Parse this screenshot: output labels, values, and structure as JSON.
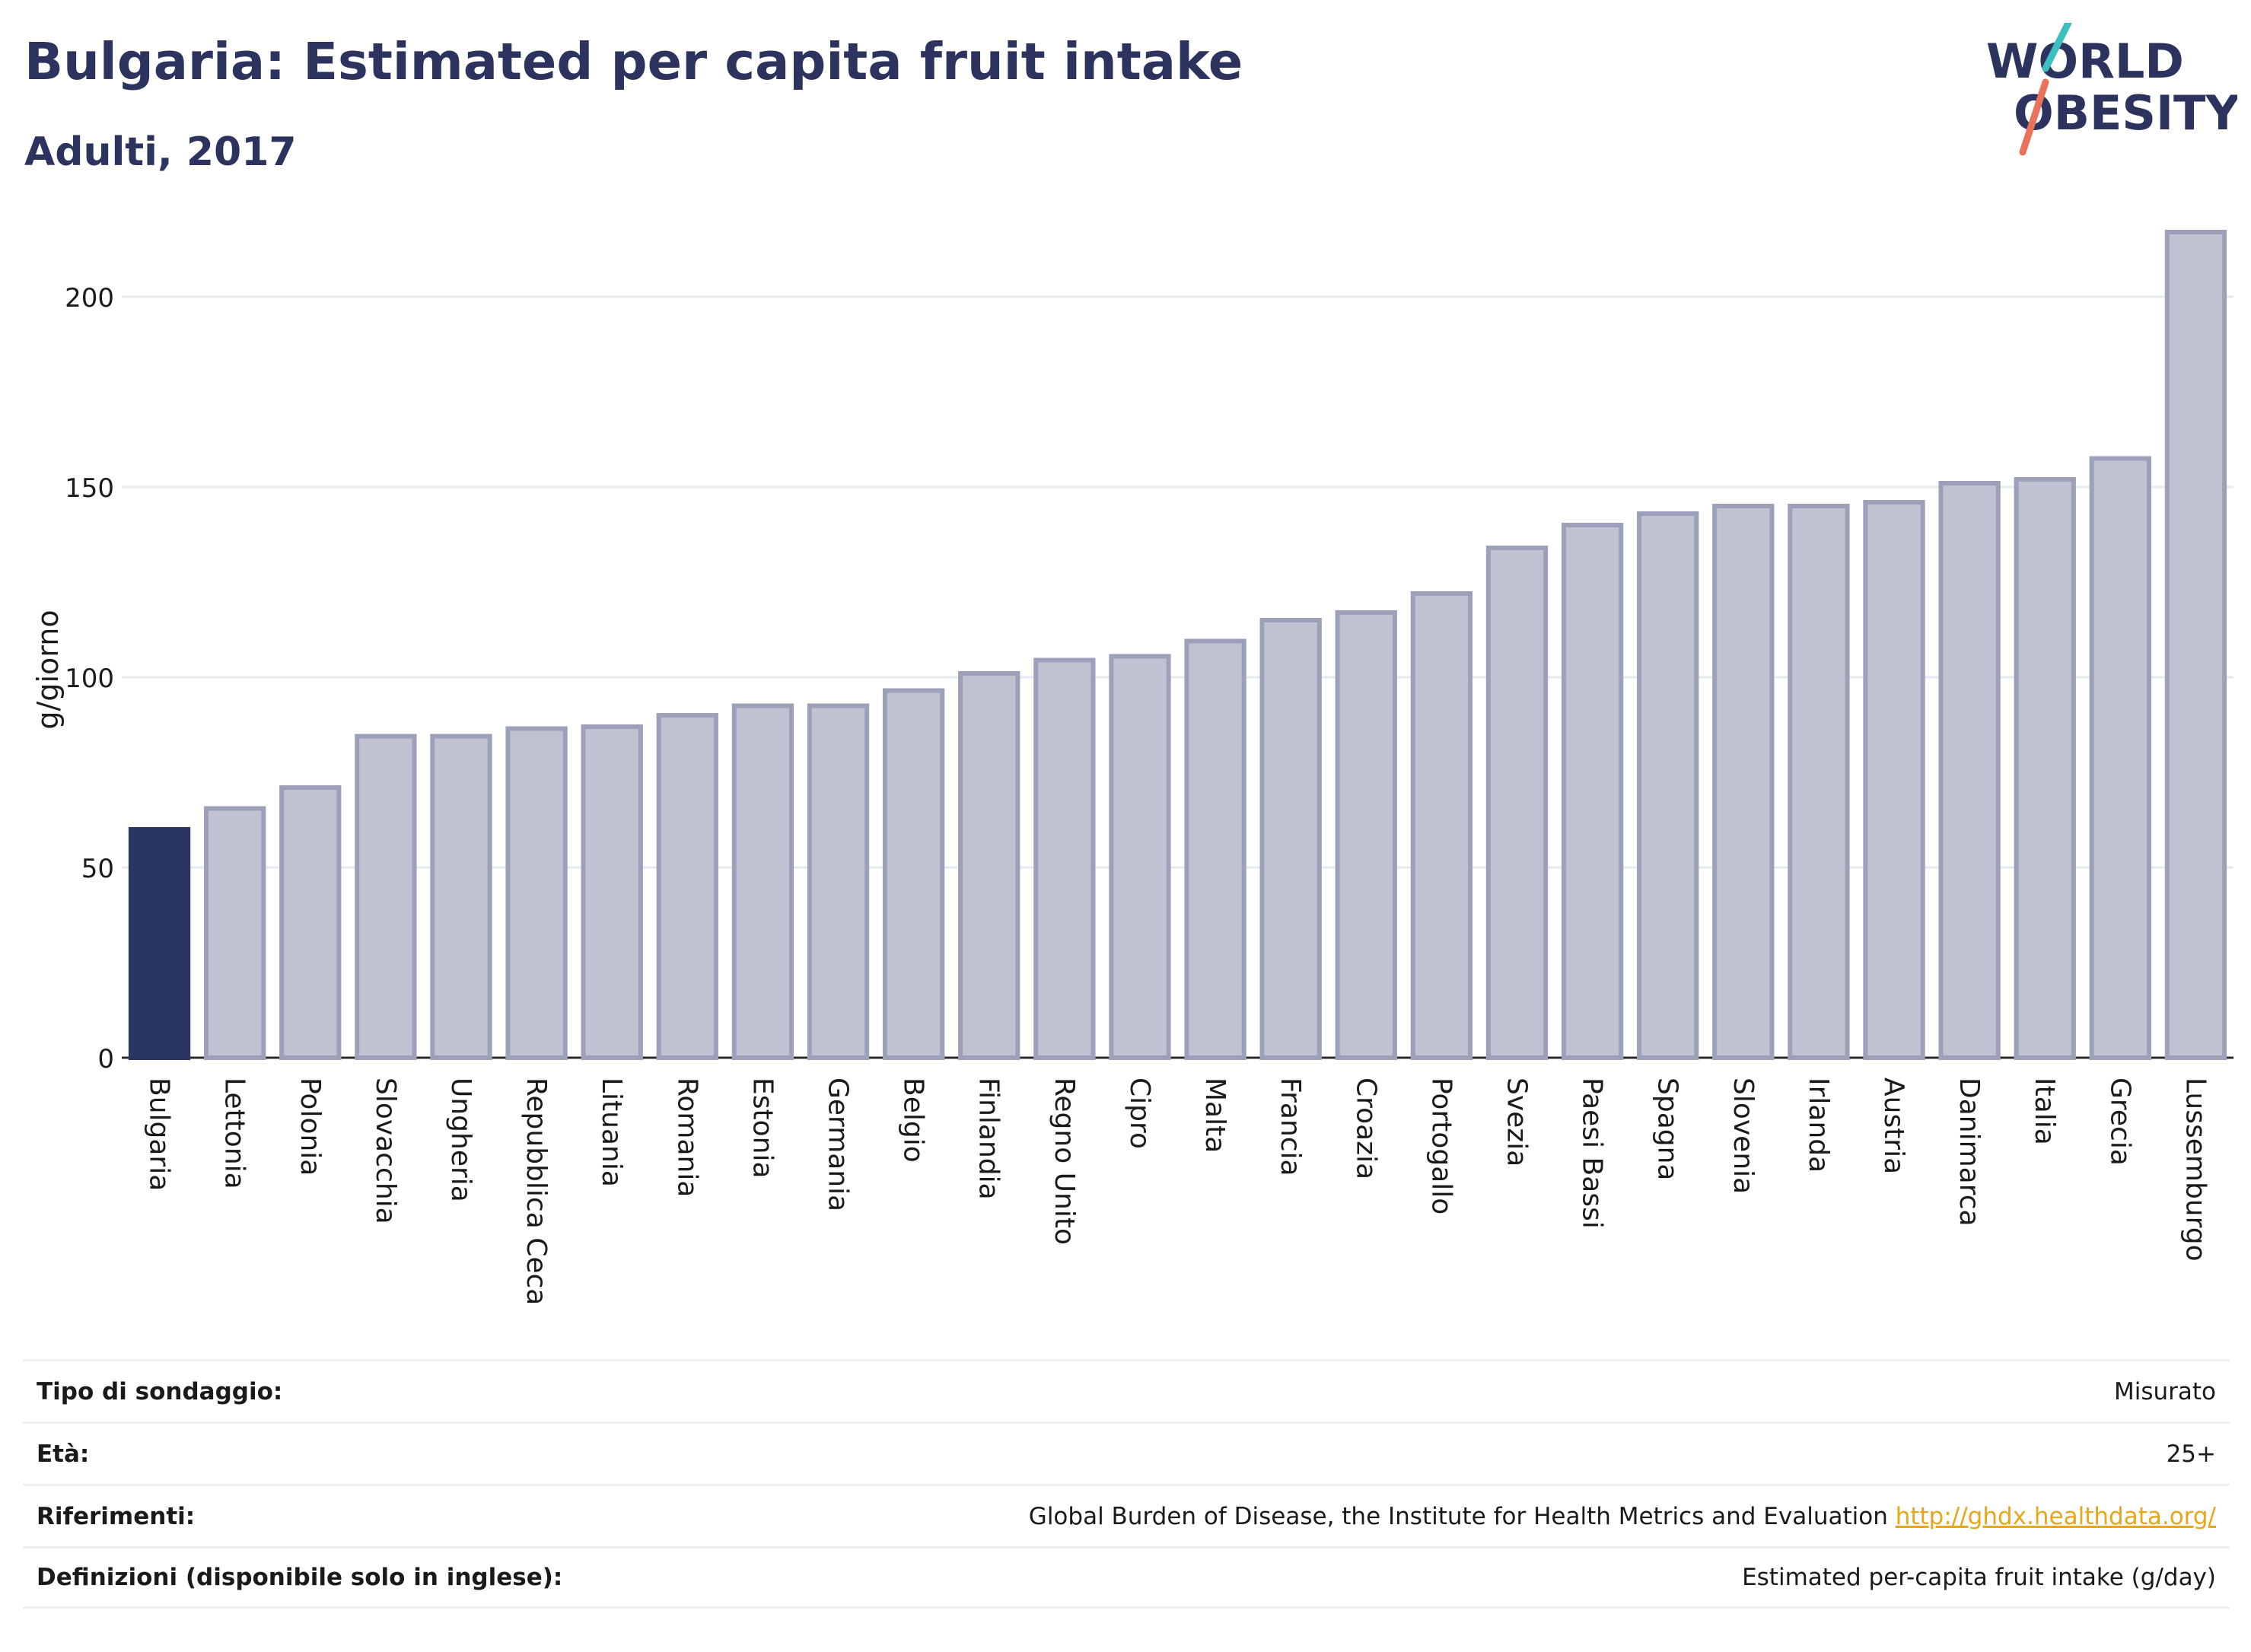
{
  "header": {
    "title": "Bulgaria: Estimated per capita fruit intake",
    "subtitle": "Adulti, 2017"
  },
  "logo": {
    "line1": "WORLD",
    "line2": "OBESITY",
    "slash_colors": [
      "#3bbfbf",
      "#e8735a"
    ]
  },
  "chart_data": {
    "type": "bar",
    "title": "Bulgaria: Estimated per capita fruit intake",
    "subtitle": "Adulti, 2017",
    "xlabel": "",
    "ylabel": "g/giorno",
    "ylim": [
      0,
      220
    ],
    "yticks": [
      0,
      50,
      100,
      150,
      200
    ],
    "grid": true,
    "highlight": "Bulgaria",
    "colors": {
      "highlight": "#2b3562",
      "bar": "#bfc2d0",
      "bar_edge": "#9ca1b9",
      "grid": "#e6e9ee",
      "axis": "#2b2b2b"
    },
    "categories": [
      "Bulgaria",
      "Lettonia",
      "Polonia",
      "Slovacchia",
      "Ungheria",
      "Repubblica Ceca",
      "Lituania",
      "Romania",
      "Estonia",
      "Germania",
      "Belgio",
      "Finlandia",
      "Regno Unito",
      "Cipro",
      "Malta",
      "Francia",
      "Croazia",
      "Portogallo",
      "Svezia",
      "Paesi Bassi",
      "Spagna",
      "Slovenia",
      "Irlanda",
      "Austria",
      "Danimarca",
      "Italia",
      "Grecia",
      "Lussemburgo"
    ],
    "values": [
      60,
      65.5,
      71,
      84.5,
      84.5,
      86.5,
      87,
      90,
      92.5,
      92.5,
      96.5,
      101,
      104.5,
      105.5,
      109.5,
      115,
      117,
      122,
      134,
      140,
      143,
      145,
      145,
      146,
      151,
      152,
      157.5,
      217
    ]
  },
  "info": {
    "rows": [
      {
        "label": "Tipo di sondaggio:",
        "value": "Misurato",
        "link": ""
      },
      {
        "label": "Età:",
        "value": "25+",
        "link": ""
      },
      {
        "label": "Riferimenti:",
        "value": "Global Burden of Disease, the Institute for Health Metrics and Evaluation",
        "link": "http://ghdx.healthdata.org/"
      },
      {
        "label": "Definizioni (disponibile solo in inglese):",
        "value": "Estimated per-capita fruit intake (g/day)",
        "link": ""
      }
    ]
  }
}
